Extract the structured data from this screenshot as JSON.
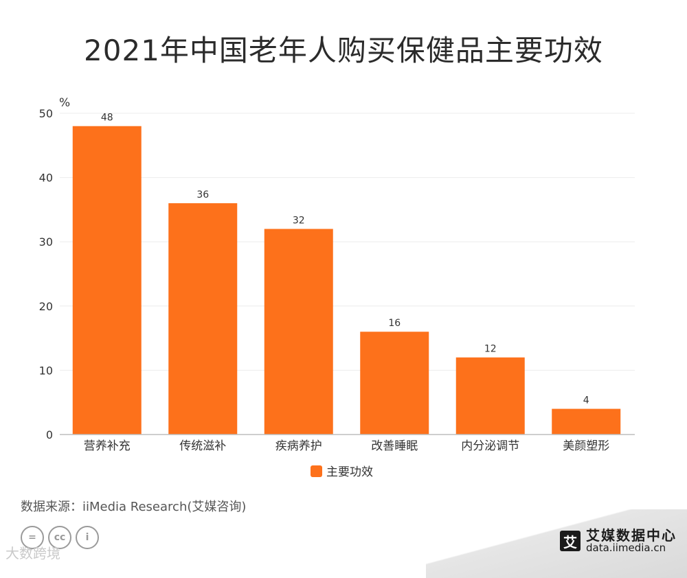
{
  "chart_data": {
    "type": "bar",
    "title": "2021年中国老年人购买保健品主要功效",
    "categories": [
      "营养补充",
      "传统滋补",
      "疾病养护",
      "改善睡眠",
      "内分泌调节",
      "美颜塑形"
    ],
    "series": [
      {
        "name": "主要功效",
        "values": [
          48,
          36,
          32,
          16,
          12,
          4
        ],
        "color": "#fd711b"
      }
    ],
    "y_unit_label": "%",
    "ylim": [
      0,
      50
    ],
    "yticks": [
      0,
      10,
      20,
      30,
      40,
      50
    ],
    "grid": true,
    "legend_position": "bottom-center"
  },
  "source": "数据来源：iiMedia Research(艾媒咨询)",
  "license_badges": [
    "=",
    "cc",
    "i"
  ],
  "watermark": "大数跨境",
  "brand": {
    "logo_char": "艾",
    "name": "艾媒数据中心",
    "url": "data.iimedia.cn"
  }
}
